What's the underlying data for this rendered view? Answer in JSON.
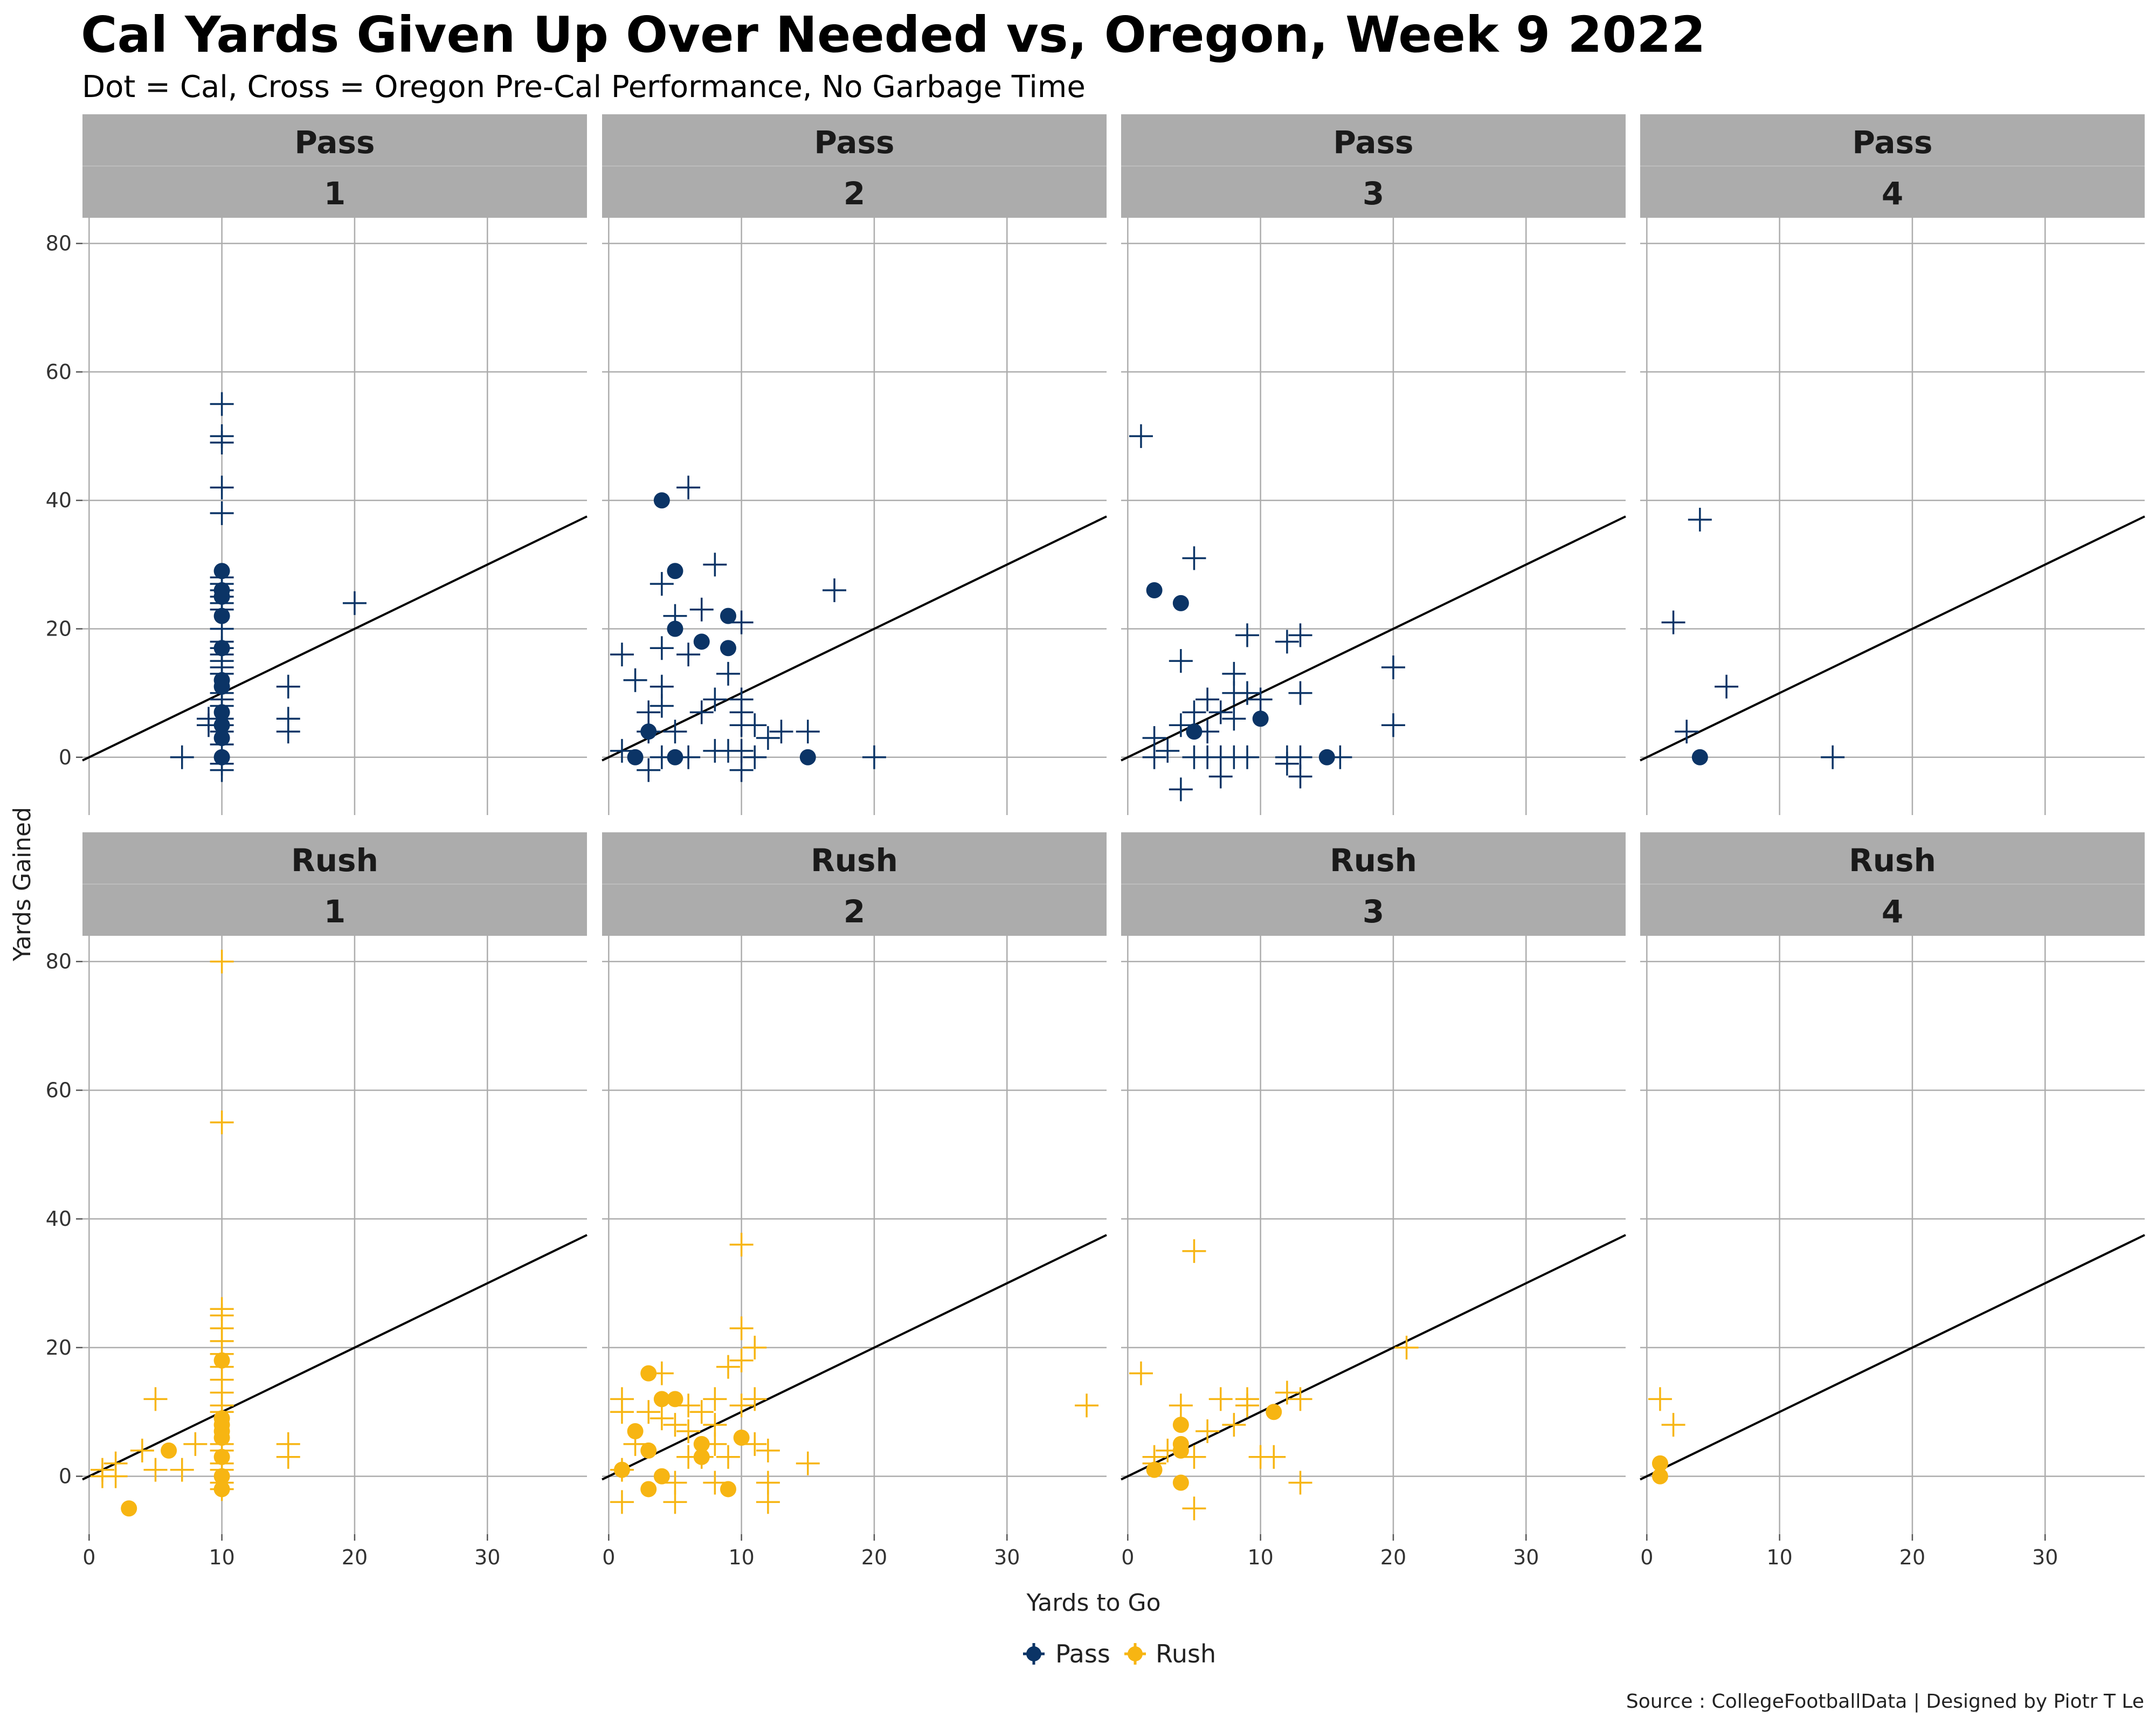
{
  "chart_data": {
    "type": "scatter",
    "title": "Cal Yards Given Up Over Needed vs, Oregon, Week 9 2022",
    "subtitle": "Dot = Cal, Cross = Oregon Pre-Cal Performance, No Garbage Time",
    "xlabel": "Yards to Go",
    "ylabel": "Yards Gained",
    "caption": "Source : CollegeFootballData | Designed by Piotr T Le",
    "xlim": [
      -0.5,
      37.5
    ],
    "xticks": [
      0,
      10,
      20,
      30
    ],
    "xtick_labels": [
      "0",
      "10",
      "20",
      "30"
    ],
    "ylim": [
      -9,
      84
    ],
    "yticks": [
      0,
      20,
      40,
      60,
      80
    ],
    "ytick_labels": [
      "0",
      "20",
      "40",
      "60",
      "80"
    ],
    "grid": true,
    "reference_line": {
      "slope": 1,
      "intercept": 0
    },
    "legend": {
      "position": "bottom",
      "entries": [
        {
          "label": "Pass",
          "color": "#0b3466"
        },
        {
          "label": "Rush",
          "color": "#f7b512"
        }
      ]
    },
    "colors": {
      "Pass": "#0b3466",
      "Rush": "#f7b512",
      "strip": "#acacac",
      "grid": "#adadad"
    },
    "facets": [
      {
        "play_type": "Pass",
        "down": "1",
        "cal": [
          [
            10,
            29
          ],
          [
            10,
            26
          ],
          [
            10,
            25
          ],
          [
            10,
            22
          ],
          [
            10,
            17
          ],
          [
            10,
            12
          ],
          [
            10,
            11
          ],
          [
            10,
            7
          ],
          [
            10,
            5
          ],
          [
            10,
            3
          ],
          [
            10,
            0
          ]
        ],
        "oregon": [
          [
            10,
            55
          ],
          [
            10,
            50
          ],
          [
            10,
            49
          ],
          [
            10,
            42
          ],
          [
            10,
            38
          ],
          [
            10,
            28
          ],
          [
            10,
            27
          ],
          [
            10,
            26
          ],
          [
            10,
            25
          ],
          [
            10,
            24
          ],
          [
            10,
            23
          ],
          [
            10,
            20
          ],
          [
            10,
            18
          ],
          [
            10,
            17
          ],
          [
            10,
            16
          ],
          [
            10,
            15
          ],
          [
            10,
            14
          ],
          [
            10,
            13
          ],
          [
            10,
            10
          ],
          [
            10,
            9
          ],
          [
            10,
            8
          ],
          [
            10,
            6
          ],
          [
            10,
            5
          ],
          [
            10,
            4
          ],
          [
            10,
            2
          ],
          [
            10,
            -1
          ],
          [
            10,
            -2
          ],
          [
            9,
            6
          ],
          [
            9,
            5
          ],
          [
            7,
            0
          ],
          [
            15,
            11
          ],
          [
            15,
            6
          ],
          [
            15,
            4
          ],
          [
            20,
            24
          ]
        ]
      },
      {
        "play_type": "Pass",
        "down": "2",
        "cal": [
          [
            4,
            40
          ],
          [
            5,
            29
          ],
          [
            9,
            22
          ],
          [
            5,
            20
          ],
          [
            7,
            18
          ],
          [
            9,
            17
          ],
          [
            3,
            4
          ],
          [
            2,
            0
          ],
          [
            5,
            0
          ],
          [
            15,
            0
          ]
        ],
        "oregon": [
          [
            6,
            42
          ],
          [
            8,
            30
          ],
          [
            4,
            27
          ],
          [
            17,
            26
          ],
          [
            7,
            23
          ],
          [
            5,
            22
          ],
          [
            10,
            21
          ],
          [
            4,
            17
          ],
          [
            1,
            16
          ],
          [
            6,
            16
          ],
          [
            9,
            13
          ],
          [
            2,
            12
          ],
          [
            4,
            11
          ],
          [
            8,
            9
          ],
          [
            10,
            9
          ],
          [
            4,
            8
          ],
          [
            3,
            7
          ],
          [
            7,
            7
          ],
          [
            10,
            7
          ],
          [
            10,
            5
          ],
          [
            11,
            5
          ],
          [
            3,
            4
          ],
          [
            5,
            4
          ],
          [
            13,
            4
          ],
          [
            15,
            4
          ],
          [
            12,
            3
          ],
          [
            1,
            1
          ],
          [
            8,
            1
          ],
          [
            9,
            1
          ],
          [
            10,
            1
          ],
          [
            4,
            0
          ],
          [
            6,
            0
          ],
          [
            11,
            0
          ],
          [
            20,
            0
          ],
          [
            3,
            -2
          ],
          [
            10,
            -2
          ]
        ]
      },
      {
        "play_type": "Pass",
        "down": "3",
        "cal": [
          [
            2,
            26
          ],
          [
            4,
            24
          ],
          [
            10,
            6
          ],
          [
            5,
            4
          ],
          [
            15,
            0
          ]
        ],
        "oregon": [
          [
            1,
            50
          ],
          [
            5,
            31
          ],
          [
            9,
            19
          ],
          [
            12,
            18
          ],
          [
            13,
            19
          ],
          [
            4,
            15
          ],
          [
            20,
            14
          ],
          [
            8,
            13
          ],
          [
            8,
            10
          ],
          [
            9,
            10
          ],
          [
            10,
            9
          ],
          [
            6,
            9
          ],
          [
            13,
            10
          ],
          [
            7,
            7
          ],
          [
            5,
            7
          ],
          [
            8,
            6
          ],
          [
            4,
            5
          ],
          [
            20,
            5
          ],
          [
            6,
            4
          ],
          [
            2,
            3
          ],
          [
            3,
            1
          ],
          [
            2,
            0
          ],
          [
            5,
            0
          ],
          [
            6,
            0
          ],
          [
            7,
            0
          ],
          [
            8,
            0
          ],
          [
            9,
            0
          ],
          [
            12,
            0
          ],
          [
            13,
            0
          ],
          [
            16,
            0
          ],
          [
            12,
            -1
          ],
          [
            7,
            -3
          ],
          [
            13,
            -3
          ],
          [
            4,
            -5
          ]
        ]
      },
      {
        "play_type": "Pass",
        "down": "4",
        "cal": [
          [
            4,
            0
          ]
        ],
        "oregon": [
          [
            4,
            37
          ],
          [
            2,
            21
          ],
          [
            6,
            11
          ],
          [
            3,
            4
          ],
          [
            14,
            0
          ]
        ]
      },
      {
        "play_type": "Rush",
        "down": "1",
        "cal": [
          [
            10,
            18
          ],
          [
            10,
            9
          ],
          [
            10,
            8
          ],
          [
            10,
            7
          ],
          [
            10,
            6
          ],
          [
            10,
            3
          ],
          [
            10,
            0
          ],
          [
            10,
            -2
          ],
          [
            6,
            4
          ],
          [
            3,
            -5
          ]
        ],
        "oregon": [
          [
            10,
            80
          ],
          [
            10,
            55
          ],
          [
            10,
            26
          ],
          [
            10,
            25
          ],
          [
            10,
            23
          ],
          [
            10,
            21
          ],
          [
            10,
            19
          ],
          [
            10,
            17
          ],
          [
            10,
            15
          ],
          [
            10,
            13
          ],
          [
            10,
            11
          ],
          [
            10,
            10
          ],
          [
            10,
            5
          ],
          [
            10,
            4
          ],
          [
            10,
            2
          ],
          [
            10,
            1
          ],
          [
            10,
            -1
          ],
          [
            10,
            -2
          ],
          [
            5,
            12
          ],
          [
            15,
            5
          ],
          [
            15,
            3
          ],
          [
            8,
            5
          ],
          [
            7,
            1
          ],
          [
            5,
            1
          ],
          [
            4,
            4
          ],
          [
            2,
            2
          ],
          [
            2,
            0
          ],
          [
            1,
            0
          ],
          [
            1,
            1
          ]
        ]
      },
      {
        "play_type": "Rush",
        "down": "2",
        "cal": [
          [
            3,
            16
          ],
          [
            4,
            12
          ],
          [
            5,
            12
          ],
          [
            2,
            7
          ],
          [
            10,
            6
          ],
          [
            7,
            5
          ],
          [
            3,
            4
          ],
          [
            7,
            3
          ],
          [
            1,
            1
          ],
          [
            4,
            0
          ],
          [
            3,
            -2
          ],
          [
            9,
            -2
          ]
        ],
        "oregon": [
          [
            10,
            36
          ],
          [
            10,
            23
          ],
          [
            11,
            20
          ],
          [
            10,
            18
          ],
          [
            9,
            17
          ],
          [
            4,
            16
          ],
          [
            1,
            12
          ],
          [
            8,
            12
          ],
          [
            11,
            12
          ],
          [
            6,
            11
          ],
          [
            10,
            11
          ],
          [
            36,
            11
          ],
          [
            1,
            10
          ],
          [
            3,
            10
          ],
          [
            7,
            10
          ],
          [
            4,
            9
          ],
          [
            8,
            8
          ],
          [
            5,
            8
          ],
          [
            6,
            7
          ],
          [
            2,
            5
          ],
          [
            8,
            5
          ],
          [
            11,
            5
          ],
          [
            12,
            4
          ],
          [
            6,
            3
          ],
          [
            7,
            3
          ],
          [
            9,
            3
          ],
          [
            15,
            2
          ],
          [
            1,
            1
          ],
          [
            5,
            -1
          ],
          [
            8,
            -1
          ],
          [
            12,
            -1
          ],
          [
            1,
            -4
          ],
          [
            5,
            -4
          ],
          [
            12,
            -4
          ]
        ]
      },
      {
        "play_type": "Rush",
        "down": "3",
        "cal": [
          [
            11,
            10
          ],
          [
            4,
            8
          ],
          [
            4,
            5
          ],
          [
            4,
            4
          ],
          [
            2,
            1
          ],
          [
            4,
            -1
          ]
        ],
        "oregon": [
          [
            5,
            35
          ],
          [
            21,
            20
          ],
          [
            1,
            16
          ],
          [
            12,
            13
          ],
          [
            13,
            12
          ],
          [
            7,
            12
          ],
          [
            9,
            12
          ],
          [
            4,
            11
          ],
          [
            9,
            11
          ],
          [
            8,
            8
          ],
          [
            6,
            7
          ],
          [
            3,
            4
          ],
          [
            2,
            3
          ],
          [
            5,
            3
          ],
          [
            10,
            3
          ],
          [
            11,
            3
          ],
          [
            2,
            2
          ],
          [
            13,
            -1
          ],
          [
            5,
            -5
          ]
        ]
      },
      {
        "play_type": "Rush",
        "down": "4",
        "cal": [
          [
            1,
            2
          ],
          [
            1,
            0
          ]
        ],
        "oregon": [
          [
            1,
            12
          ],
          [
            2,
            8
          ]
        ]
      }
    ]
  }
}
